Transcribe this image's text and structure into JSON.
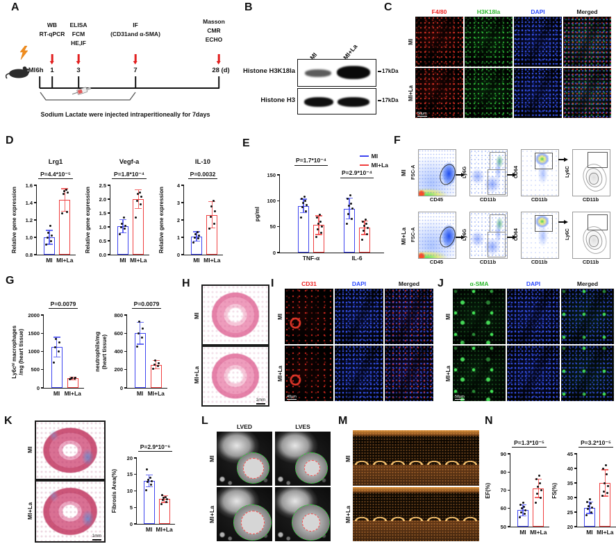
{
  "colors": {
    "mi_blue": "#3c43f0",
    "la_red": "#f03c3c",
    "arrow_red": "#e21f1f"
  },
  "panels": {
    "A": {
      "label": "A",
      "mi": "MI",
      "tick_labels": [
        "6h",
        "1",
        "3",
        "7",
        "28 (d)"
      ],
      "groups": [
        [
          "WB",
          "RT-qPCR"
        ],
        [
          "ELISA",
          "FCM",
          "HE,IF"
        ],
        [
          "IF",
          "(CD31and α-SMA)"
        ],
        [
          "Masson",
          "CMR",
          "ECHO"
        ]
      ],
      "caption": "Sodium Lactate were injected intraperitioneally for 7days"
    },
    "B": {
      "label": "B",
      "lanes": [
        "MI",
        "MI+La"
      ],
      "rows": [
        {
          "name": "Histone H3K18la",
          "kda": "17kDa"
        },
        {
          "name": "Histone H3",
          "kda": "17kDa"
        }
      ]
    },
    "C": {
      "label": "C",
      "columns": [
        {
          "t": "F4/80",
          "color": "#ee2222"
        },
        {
          "t": "H3K18la",
          "color": "#2eb82e"
        },
        {
          "t": "DAPI",
          "color": "#2d4bff"
        },
        {
          "t": "Merged",
          "color": "#111111"
        }
      ],
      "rows": [
        "MI",
        "MI+La"
      ],
      "scalebar": "50μm"
    },
    "D": {
      "label": "D"
    },
    "E": {
      "label": "E"
    },
    "F": {
      "label": "F",
      "rows": [
        "MI",
        "MI+La"
      ],
      "plots": [
        {
          "y": "FSC-A",
          "x": "CD45"
        },
        {
          "y": "Ly6G",
          "x": "CD11b"
        },
        {
          "y": "CD64",
          "x": "CD11b"
        },
        {
          "y": "Ly6C",
          "x": "CD11b"
        }
      ]
    },
    "G": {
      "label": "G"
    },
    "H": {
      "label": "H",
      "rows": [
        "MI",
        "MI+La"
      ],
      "scalebar": "1mm"
    },
    "I": {
      "label": "I",
      "columns": [
        {
          "t": "CD31",
          "color": "#ee2222"
        },
        {
          "t": "DAPI",
          "color": "#2d4bff"
        },
        {
          "t": "Merged",
          "color": "#111111"
        }
      ],
      "rows": [
        "MI",
        "MI+La"
      ],
      "scalebar": "40μm"
    },
    "J": {
      "label": "J",
      "columns": [
        {
          "t": "α-SMA",
          "color": "#2eb82e"
        },
        {
          "t": "DAPI",
          "color": "#2d4bff"
        },
        {
          "t": "Merged",
          "color": "#111111"
        }
      ],
      "rows": [
        "MI",
        "MI+La"
      ],
      "scalebar": "50μm"
    },
    "K": {
      "label": "K",
      "rows": [
        "MI",
        "MI+La"
      ],
      "scalebar": "1mm"
    },
    "L": {
      "label": "L",
      "columns": [
        "LVED",
        "LVES"
      ],
      "rows": [
        "MI",
        "MI+La"
      ]
    },
    "M": {
      "label": "M",
      "rows": [
        "MI",
        "MI+La"
      ]
    },
    "N": {
      "label": "N"
    }
  },
  "chart_data": [
    {
      "id": "lrg1",
      "type": "bar",
      "title": "Lrg1",
      "p": "P=4.4*10⁻⁵",
      "ylabel": [
        "Relative gene expression"
      ],
      "ymin": 0.8,
      "ymax": 1.6,
      "yticks": [
        0.8,
        1.0,
        1.2,
        1.4,
        1.6
      ],
      "decimals": 1,
      "groups": [
        {
          "label": "MI",
          "color": "#3c43f0",
          "mean": 1.0,
          "err": 0.08,
          "points": [
            0.92,
            0.96,
            1.0,
            1.02,
            1.05,
            1.13
          ]
        },
        {
          "label": "MI+La",
          "color": "#f03c3c",
          "mean": 1.43,
          "err": 0.13,
          "points": [
            1.28,
            1.29,
            1.5,
            1.52,
            1.53,
            1.55
          ]
        }
      ]
    },
    {
      "id": "vegfa",
      "type": "bar",
      "title": "Vegf-a",
      "p": "P=1.8*10⁻⁴",
      "ylabel": [
        "Relative gene expression"
      ],
      "ymin": 0,
      "ymax": 2.5,
      "yticks": [
        0,
        0.5,
        1.0,
        1.5,
        2.0,
        2.5
      ],
      "decimals": 1,
      "groups": [
        {
          "label": "MI",
          "color": "#3c43f0",
          "mean": 1.02,
          "err": 0.24,
          "points": [
            0.75,
            0.95,
            1.0,
            1.05,
            1.12,
            1.35
          ]
        },
        {
          "label": "MI+La",
          "color": "#f03c3c",
          "mean": 2.0,
          "err": 0.33,
          "points": [
            1.35,
            1.82,
            1.95,
            2.1,
            2.18,
            2.25
          ]
        }
      ]
    },
    {
      "id": "il10",
      "type": "bar",
      "title": "IL-10",
      "p": "P=0.0032",
      "ylabel": [
        "Relative gene expression"
      ],
      "ymin": 0,
      "ymax": 4,
      "yticks": [
        0,
        1,
        2,
        3,
        4
      ],
      "decimals": 0,
      "groups": [
        {
          "label": "MI",
          "color": "#3c43f0",
          "mean": 1.05,
          "err": 0.27,
          "points": [
            0.7,
            0.95,
            1.0,
            1.1,
            1.2,
            1.3
          ]
        },
        {
          "label": "MI+La",
          "color": "#f03c3c",
          "mean": 2.3,
          "err": 0.75,
          "points": [
            1.5,
            1.8,
            2.2,
            2.5,
            2.8,
            3.1
          ]
        }
      ]
    },
    {
      "id": "cytokines",
      "type": "grouped-bar",
      "ylabel": [
        "pg/ml"
      ],
      "ymin": 0,
      "ymax": 150,
      "yticks": [
        0,
        50,
        100,
        150
      ],
      "decimals": 0,
      "categories": [
        "TNF-α",
        "IL-6"
      ],
      "cat_p": [
        "P=1.7*10⁻⁴",
        "P=2.9*10⁻⁴"
      ],
      "series": [
        {
          "name": "MI",
          "color": "#3c43f0",
          "means": [
            90,
            85
          ],
          "errs": [
            13,
            20
          ],
          "points": [
            [
              68,
              80,
              88,
              92,
              96,
              100,
              104,
              108
            ],
            [
              55,
              65,
              75,
              85,
              90,
              95,
              104,
              110
            ]
          ]
        },
        {
          "name": "MI+La",
          "color": "#f03c3c",
          "means": [
            53,
            48
          ],
          "errs": [
            18,
            13
          ],
          "points": [
            [
              30,
              38,
              45,
              50,
              55,
              60,
              68,
              73
            ],
            [
              25,
              35,
              42,
              47,
              52,
              55,
              60,
              63
            ]
          ]
        }
      ]
    },
    {
      "id": "macrophages",
      "type": "bar",
      "p": "P=0.0079",
      "ylabel": [
        "Ly6cʰⁱ macrophages",
        "/mg (heart tissue)"
      ],
      "ymin": 0,
      "ymax": 2000,
      "yticks": [
        0,
        500,
        1000,
        1500,
        2000
      ],
      "decimals": 0,
      "groups": [
        {
          "label": "MI",
          "color": "#3c43f0",
          "mean": 1120,
          "err": 270,
          "points": [
            700,
            1000,
            1120,
            1250,
            1350
          ]
        },
        {
          "label": "MI+La",
          "color": "#f03c3c",
          "mean": 260,
          "err": 35,
          "points": [
            235,
            250,
            262,
            272,
            285
          ]
        }
      ]
    },
    {
      "id": "neutrophils",
      "type": "bar",
      "p": "P=0.0079",
      "ylabel": [
        "neutrophils/mg",
        "(heart tissue)"
      ],
      "ymin": 0,
      "ymax": 800,
      "yticks": [
        0,
        200,
        400,
        600,
        800
      ],
      "decimals": 0,
      "groups": [
        {
          "label": "MI",
          "color": "#3c43f0",
          "mean": 600,
          "err": 120,
          "points": [
            455,
            550,
            600,
            650,
            730
          ]
        },
        {
          "label": "MI+La",
          "color": "#f03c3c",
          "mean": 255,
          "err": 45,
          "points": [
            212,
            240,
            255,
            272,
            300
          ]
        }
      ]
    },
    {
      "id": "fibrosis",
      "type": "bar",
      "p": "P=2.9*10⁻⁶",
      "ylabel": [
        "Fibrosis Area(%)"
      ],
      "ymin": 0,
      "ymax": 20,
      "yticks": [
        0,
        5,
        10,
        15,
        20
      ],
      "decimals": 0,
      "groups": [
        {
          "label": "MI",
          "color": "#3c43f0",
          "mean": 13,
          "err": 1.8,
          "points": [
            10.2,
            12,
            12.8,
            13,
            13.4,
            14,
            16.5
          ]
        },
        {
          "label": "MI+La",
          "color": "#f03c3c",
          "mean": 7.5,
          "err": 1.0,
          "points": [
            6,
            6.6,
            7.2,
            7.5,
            7.8,
            8.1,
            8.7
          ]
        }
      ]
    },
    {
      "id": "ef",
      "type": "bar",
      "p": "P=1.3*10⁻⁵",
      "ylabel": [
        "EF(%)"
      ],
      "ymin": 50,
      "ymax": 90,
      "yticks": [
        50,
        60,
        70,
        80,
        90
      ],
      "decimals": 0,
      "groups": [
        {
          "label": "MI",
          "color": "#3c43f0",
          "mean": 59,
          "err": 3,
          "points": [
            55,
            57,
            58,
            59,
            60,
            61,
            62,
            63
          ]
        },
        {
          "label": "MI+La",
          "color": "#f03c3c",
          "mean": 71,
          "err": 5,
          "points": [
            63,
            66,
            68,
            70,
            72,
            74,
            76,
            78
          ]
        }
      ]
    },
    {
      "id": "fs",
      "type": "bar",
      "p": "P=3.2*10⁻⁵",
      "ylabel": [
        "FS(%)"
      ],
      "ymin": 20,
      "ymax": 45,
      "yticks": [
        20,
        25,
        30,
        35,
        40,
        45
      ],
      "decimals": 0,
      "groups": [
        {
          "label": "MI",
          "color": "#3c43f0",
          "mean": 26.5,
          "err": 2,
          "points": [
            24,
            25,
            26,
            26.5,
            27,
            28,
            28.5,
            29.5
          ]
        },
        {
          "label": "MI+La",
          "color": "#f03c3c",
          "mean": 35,
          "err": 4.5,
          "points": [
            30.5,
            31.5,
            32,
            34,
            35,
            38,
            40,
            41
          ]
        }
      ]
    }
  ]
}
